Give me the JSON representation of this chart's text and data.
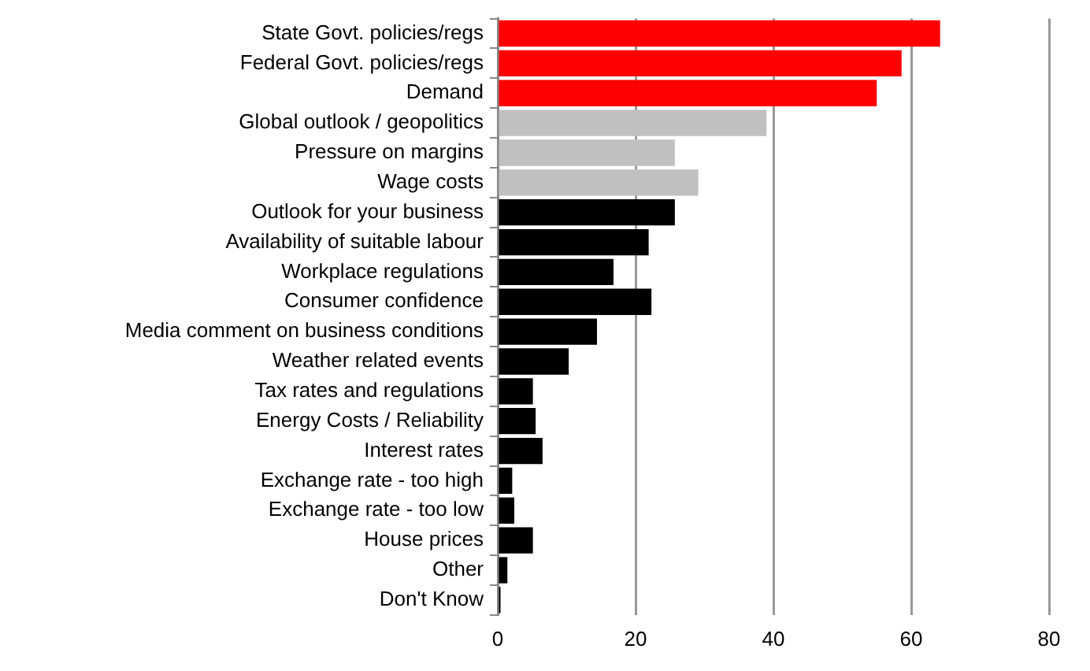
{
  "chart_data": {
    "type": "bar",
    "orientation": "horizontal",
    "categories": [
      "State Govt. policies/regs",
      "Federal Govt. policies/regs",
      "Demand",
      "Global outlook / geopolitics",
      "Pressure on margins",
      "Wage costs",
      "Outlook for your business",
      "Availability of suitable labour",
      "Workplace regulations",
      "Consumer confidence",
      "Media comment on business conditions",
      "Weather related events",
      "Tax rates and regulations",
      "Energy Costs / Reliability",
      "Interest rates",
      "Exchange rate - too high",
      "Exchange rate - too low",
      "House prices",
      "Other",
      "Don't Know"
    ],
    "values": [
      64.2,
      58.6,
      55.0,
      39.0,
      25.7,
      29.1,
      25.7,
      21.9,
      16.8,
      22.3,
      14.4,
      10.3,
      5.1,
      5.5,
      6.5,
      2.1,
      2.4,
      5.1,
      1.4,
      0.4
    ],
    "colors": [
      "#ff0000",
      "#ff0000",
      "#ff0000",
      "#c0c0c0",
      "#c0c0c0",
      "#c0c0c0",
      "#000000",
      "#000000",
      "#000000",
      "#000000",
      "#000000",
      "#000000",
      "#000000",
      "#000000",
      "#000000",
      "#000000",
      "#000000",
      "#000000",
      "#000000",
      "#000000"
    ],
    "xlim": [
      0,
      80
    ],
    "xticks": [
      0,
      20,
      40,
      60,
      80
    ],
    "grid": "x",
    "legend": false
  }
}
